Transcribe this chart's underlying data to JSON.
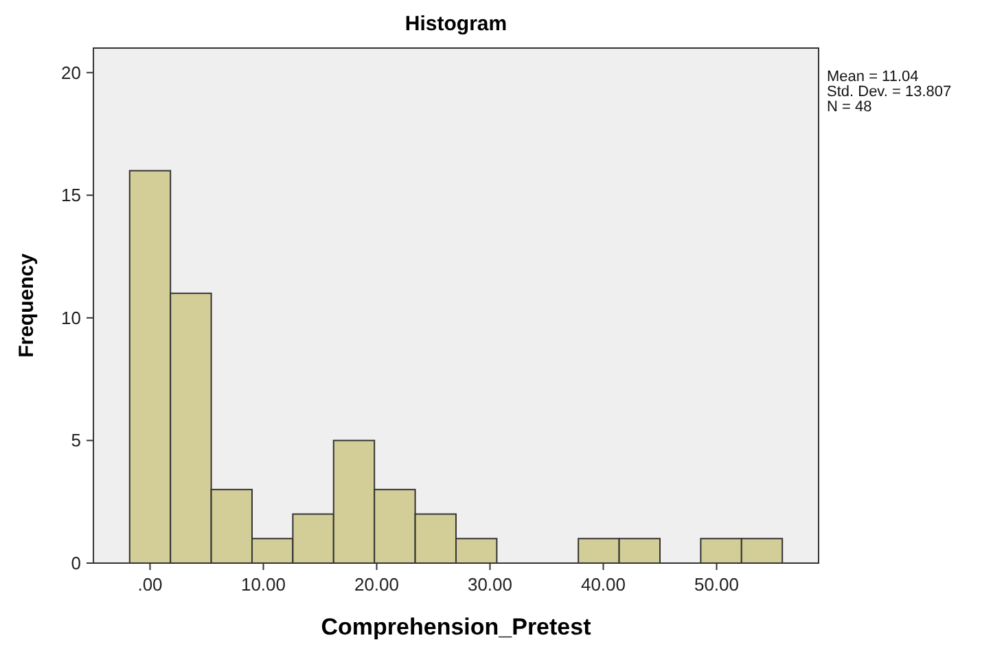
{
  "chart_data": {
    "type": "histogram",
    "title": "Histogram",
    "xlabel": "Comprehension_Pretest",
    "ylabel": "Frequency",
    "bins": [
      -1.8,
      1.8,
      5.4,
      9.0,
      12.6,
      16.2,
      19.8,
      23.4,
      27.0,
      30.6,
      34.2,
      37.8,
      41.4,
      45.0,
      48.6,
      52.2,
      55.8
    ],
    "values": [
      16,
      11,
      3,
      1,
      2,
      5,
      3,
      2,
      1,
      0,
      0,
      1,
      1,
      0,
      1,
      1
    ],
    "color": "#d3ce97",
    "xlim": [
      -5,
      59
    ],
    "xticks": [
      {
        "value": 0,
        "label": ".00"
      },
      {
        "value": 10,
        "label": "10.00"
      },
      {
        "value": 20,
        "label": "20.00"
      },
      {
        "value": 30,
        "label": "30.00"
      },
      {
        "value": 40,
        "label": "40.00"
      },
      {
        "value": 50,
        "label": "50.00"
      }
    ],
    "ylim": [
      0,
      21
    ],
    "yticks": [
      0,
      5,
      10,
      15,
      20
    ],
    "grid": false,
    "annotations": [
      "Mean = 11.04",
      "Std. Dev. = 13.807",
      "N = 48"
    ]
  }
}
